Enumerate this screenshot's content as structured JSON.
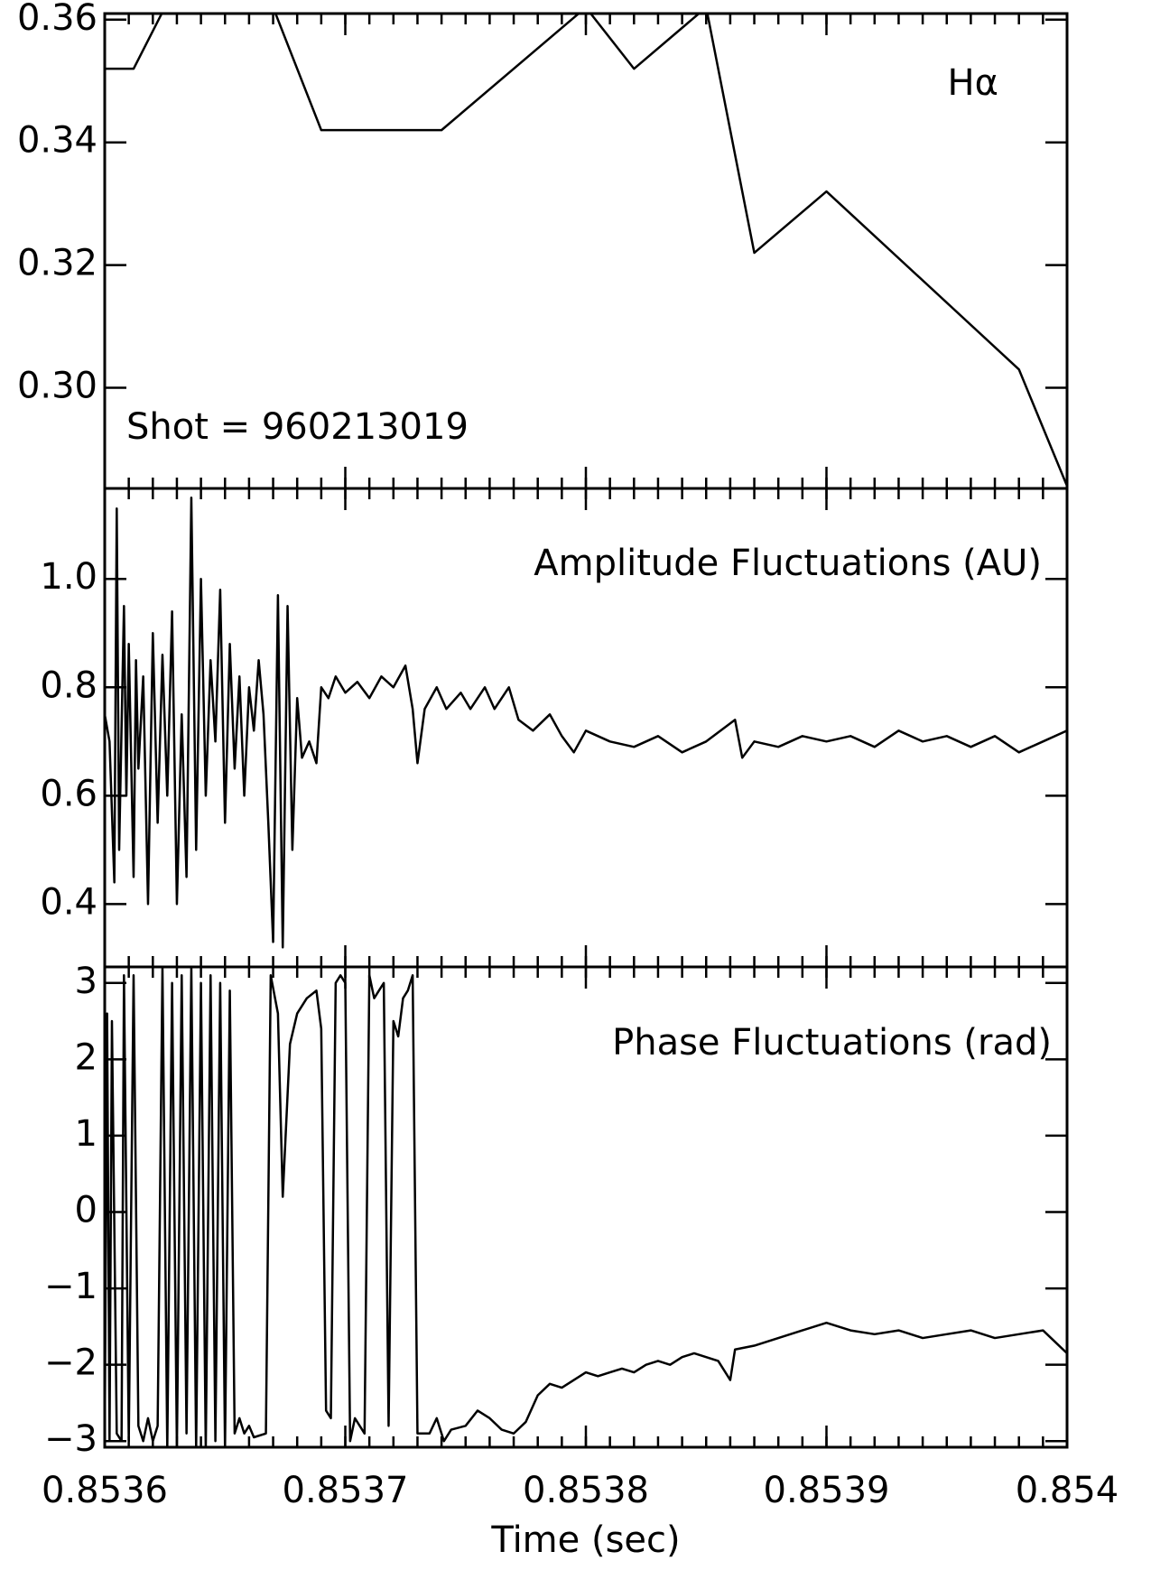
{
  "chart_data": [
    {
      "type": "line",
      "color": "#000000",
      "annotations": [
        "Hα",
        "Shot = 960213019"
      ],
      "xlim": [
        0.8536,
        0.854
      ],
      "xticks": [
        0.8536,
        0.8537,
        0.8538,
        0.8539,
        0.854
      ],
      "ylim": [
        0.2836,
        0.361
      ],
      "yticks": [
        {
          "value": 0.3,
          "label": "0.30"
        },
        0.32,
        0.34,
        0.36
      ],
      "x": [
        0.8536,
        0.853612,
        0.853625,
        0.85365,
        0.85367,
        0.85369,
        0.85374,
        0.8538,
        0.85382,
        0.85385,
        0.85387,
        0.8539,
        0.85398,
        0.854
      ],
      "values": [
        0.352,
        0.352,
        0.362,
        0.364,
        0.362,
        0.342,
        0.342,
        0.362,
        0.352,
        0.362,
        0.322,
        0.332,
        0.303,
        0.284
      ]
    },
    {
      "type": "line",
      "color": "#000000",
      "annotations": [
        "Amplitude Fluctuations (AU)"
      ],
      "xlim": [
        0.8536,
        0.854
      ],
      "xticks": [
        0.8536,
        0.8537,
        0.8538,
        0.8539,
        0.854
      ],
      "ylim": [
        0.284,
        1.167
      ],
      "yticks": [
        0.4,
        0.6,
        0.8,
        {
          "value": 1,
          "label": "1.0"
        }
      ],
      "x": [
        0.8536,
        0.853602,
        0.853604,
        0.853605,
        0.853606,
        0.853608,
        0.853609,
        0.85361,
        0.853612,
        0.853613,
        0.853614,
        0.853616,
        0.853618,
        0.85362,
        0.853622,
        0.853624,
        0.853626,
        0.853628,
        0.85363,
        0.853632,
        0.853634,
        0.853636,
        0.853638,
        0.85364,
        0.853642,
        0.853644,
        0.853646,
        0.853648,
        0.85365,
        0.853652,
        0.853654,
        0.853656,
        0.853658,
        0.85366,
        0.853662,
        0.853664,
        0.853666,
        0.853668,
        0.85367,
        0.853672,
        0.853674,
        0.853676,
        0.853678,
        0.85368,
        0.853682,
        0.853685,
        0.853688,
        0.85369,
        0.853693,
        0.853696,
        0.8537,
        0.853705,
        0.85371,
        0.853715,
        0.85372,
        0.853725,
        0.853728,
        0.85373,
        0.853733,
        0.853738,
        0.853742,
        0.853748,
        0.853752,
        0.853758,
        0.853762,
        0.853768,
        0.853772,
        0.853778,
        0.853785,
        0.85379,
        0.853795,
        0.8538,
        0.85381,
        0.85382,
        0.85383,
        0.85384,
        0.85385,
        0.853862,
        0.853865,
        0.85387,
        0.85388,
        0.85389,
        0.8539,
        0.85391,
        0.85392,
        0.85393,
        0.85394,
        0.85395,
        0.85396,
        0.85397,
        0.85398,
        0.85399,
        0.854
      ],
      "values": [
        0.75,
        0.7,
        0.44,
        1.13,
        0.5,
        0.95,
        0.6,
        0.88,
        0.45,
        0.85,
        0.65,
        0.82,
        0.4,
        0.9,
        0.55,
        0.86,
        0.6,
        0.94,
        0.4,
        0.75,
        0.45,
        1.15,
        0.5,
        1.0,
        0.6,
        0.85,
        0.7,
        0.98,
        0.55,
        0.88,
        0.65,
        0.82,
        0.6,
        0.8,
        0.72,
        0.85,
        0.75,
        0.55,
        0.33,
        0.97,
        0.32,
        0.95,
        0.5,
        0.78,
        0.67,
        0.7,
        0.66,
        0.8,
        0.78,
        0.82,
        0.79,
        0.81,
        0.78,
        0.82,
        0.8,
        0.84,
        0.76,
        0.66,
        0.76,
        0.8,
        0.76,
        0.79,
        0.76,
        0.8,
        0.76,
        0.8,
        0.74,
        0.72,
        0.75,
        0.71,
        0.68,
        0.72,
        0.7,
        0.69,
        0.71,
        0.68,
        0.7,
        0.74,
        0.67,
        0.7,
        0.69,
        0.71,
        0.7,
        0.71,
        0.69,
        0.72,
        0.7,
        0.71,
        0.69,
        0.71,
        0.68,
        0.7,
        0.72
      ]
    },
    {
      "type": "line",
      "color": "#000000",
      "annotations": [
        "Phase Fluctuations (rad)"
      ],
      "xlabel": "Time (sec)",
      "xlim": [
        0.8536,
        0.854
      ],
      "xticks": [
        0.8536,
        0.8537,
        0.8538,
        0.8539,
        0.854
      ],
      "ylim": [
        -3.08,
        3.21
      ],
      "yticks": [
        {
          "value": -3,
          "label": "−3"
        },
        {
          "value": -2,
          "label": "−2"
        },
        {
          "value": -1,
          "label": "−1"
        },
        0,
        1,
        2,
        3
      ],
      "x": [
        0.8536,
        0.853601,
        0.853602,
        0.853603,
        0.853605,
        0.853607,
        0.853608,
        0.85361,
        0.853612,
        0.853614,
        0.853616,
        0.853618,
        0.85362,
        0.853622,
        0.853624,
        0.853626,
        0.853628,
        0.85363,
        0.853632,
        0.853634,
        0.853636,
        0.853638,
        0.85364,
        0.853642,
        0.853644,
        0.853646,
        0.853648,
        0.85365,
        0.853652,
        0.853654,
        0.853656,
        0.853658,
        0.85366,
        0.853662,
        0.853667,
        0.853669,
        0.853672,
        0.853674,
        0.853677,
        0.85368,
        0.853684,
        0.853688,
        0.85369,
        0.853692,
        0.853694,
        0.853696,
        0.853698,
        0.8537,
        0.853702,
        0.853704,
        0.853708,
        0.85371,
        0.853712,
        0.853714,
        0.853716,
        0.853718,
        0.85372,
        0.853722,
        0.853724,
        0.853726,
        0.853728,
        0.85373,
        0.853735,
        0.853738,
        0.853741,
        0.853744,
        0.85375,
        0.853755,
        0.85376,
        0.853765,
        0.85377,
        0.853775,
        0.85378,
        0.853785,
        0.85379,
        0.853795,
        0.8538,
        0.853805,
        0.85381,
        0.853815,
        0.85382,
        0.853825,
        0.85383,
        0.853835,
        0.85384,
        0.853845,
        0.85385,
        0.853855,
        0.85386,
        0.853862,
        0.85387,
        0.85388,
        0.85389,
        0.8539,
        0.85391,
        0.85392,
        0.85393,
        0.85394,
        0.85395,
        0.85396,
        0.85397,
        0.85398,
        0.85399,
        0.854
      ],
      "values": [
        -3.0,
        2.6,
        -3.0,
        2.5,
        -2.9,
        -3.0,
        3.1,
        -3.0,
        3.1,
        -2.8,
        -3.0,
        -2.7,
        -3.0,
        -2.8,
        3.2,
        -3.1,
        3.0,
        -3.1,
        3.1,
        -2.9,
        3.2,
        -3.1,
        3.0,
        -3.1,
        3.1,
        -3.0,
        3.0,
        -3.1,
        2.9,
        -2.9,
        -2.7,
        -2.9,
        -2.8,
        -2.95,
        -2.9,
        3.1,
        2.6,
        0.2,
        2.2,
        2.6,
        2.8,
        2.9,
        2.4,
        -2.6,
        -2.7,
        3.0,
        3.1,
        3.0,
        -3.0,
        -2.7,
        -2.9,
        3.1,
        2.8,
        2.9,
        3.0,
        -2.8,
        2.5,
        2.3,
        2.8,
        2.9,
        3.1,
        -2.9,
        -2.9,
        -2.7,
        -3.0,
        -2.85,
        -2.8,
        -2.6,
        -2.7,
        -2.85,
        -2.9,
        -2.75,
        -2.4,
        -2.25,
        -2.3,
        -2.2,
        -2.1,
        -2.15,
        -2.1,
        -2.05,
        -2.1,
        -2.0,
        -1.95,
        -2.0,
        -1.9,
        -1.85,
        -1.9,
        -1.95,
        -2.2,
        -1.8,
        -1.75,
        -1.65,
        -1.55,
        -1.45,
        -1.55,
        -1.6,
        -1.55,
        -1.65,
        -1.6,
        -1.55,
        -1.65,
        -1.6,
        -1.55,
        -1.85
      ]
    }
  ]
}
